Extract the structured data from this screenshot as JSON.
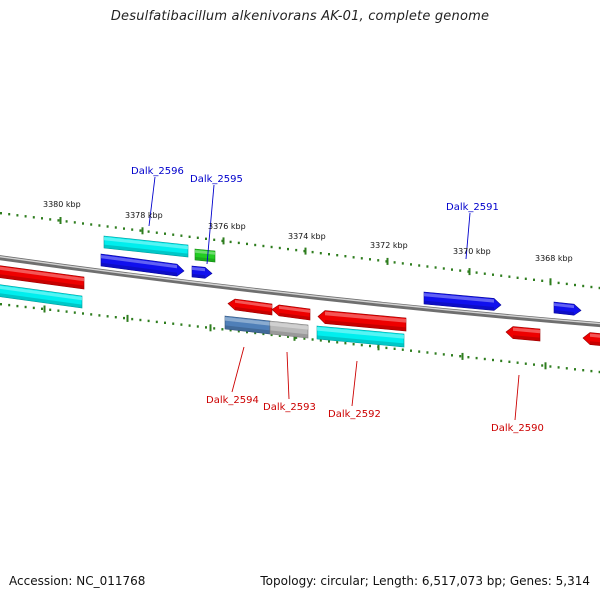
{
  "title": "Desulfatibacillum alkenivorans AK-01, complete genome",
  "footer": {
    "accession": "Accession: NC_011768",
    "topology": "Topology: circular; Length: 6,517,073 bp; Genes: 5,314"
  },
  "colors": {
    "backbone": "#888888",
    "tick": "#2e7d1e",
    "forward_label": "#0000cc",
    "reverse_label": "#cc0000",
    "red": "#ee0000",
    "blue": "#1010ee",
    "cyan": "#00eeee",
    "green": "#22cc22",
    "steelblue": "#4f7fb8",
    "gray": "#b8b8b8"
  },
  "scale_labels": [
    "3380 kbp",
    "3378 kbp",
    "3376 kbp",
    "3374 kbp",
    "3372 kbp",
    "3370 kbp",
    "3368 kbp"
  ],
  "gene_labels": [
    {
      "id": "Dalk_2596",
      "strand": "forward"
    },
    {
      "id": "Dalk_2595",
      "strand": "forward"
    },
    {
      "id": "Dalk_2591",
      "strand": "forward"
    },
    {
      "id": "Dalk_2594",
      "strand": "reverse"
    },
    {
      "id": "Dalk_2593",
      "strand": "reverse"
    },
    {
      "id": "Dalk_2592",
      "strand": "reverse"
    },
    {
      "id": "Dalk_2590",
      "strand": "reverse"
    }
  ]
}
